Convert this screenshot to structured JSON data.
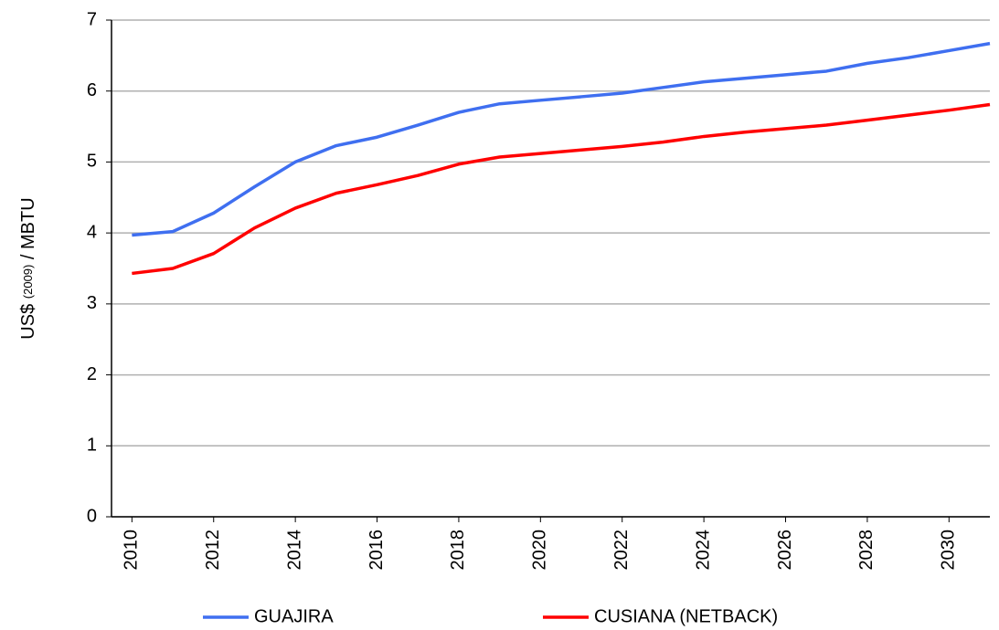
{
  "chart_data": {
    "type": "line",
    "y_label": [
      "US$",
      "(2009)",
      "/ MBTU"
    ],
    "x": [
      2010,
      2011,
      2012,
      2013,
      2014,
      2015,
      2016,
      2017,
      2018,
      2019,
      2020,
      2021,
      2022,
      2023,
      2024,
      2025,
      2026,
      2027,
      2028,
      2029,
      2030,
      2031
    ],
    "series": [
      {
        "name": "GUAJIRA",
        "color": "#3f6ff0",
        "values": [
          3.97,
          4.02,
          4.28,
          4.65,
          5.0,
          5.23,
          5.35,
          5.52,
          5.7,
          5.82,
          5.87,
          5.92,
          5.97,
          6.05,
          6.13,
          6.18,
          6.23,
          6.28,
          6.39,
          6.47,
          6.57,
          6.67
        ]
      },
      {
        "name": "CUSIANA (NETBACK)",
        "color": "#ff0000",
        "values": [
          3.43,
          3.5,
          3.71,
          4.07,
          4.35,
          4.56,
          4.68,
          4.81,
          4.97,
          5.07,
          5.12,
          5.17,
          5.22,
          5.28,
          5.36,
          5.42,
          5.47,
          5.52,
          5.59,
          5.66,
          5.73,
          5.81
        ]
      }
    ],
    "xlim": [
      2009.5,
      2031
    ],
    "xticks": [
      2010,
      2012,
      2014,
      2016,
      2018,
      2020,
      2022,
      2024,
      2026,
      2028,
      2030
    ],
    "ylim": [
      0,
      7
    ],
    "yticks": [
      0,
      1,
      2,
      3,
      4,
      5,
      6,
      7
    ],
    "grid": true,
    "legend": "bottom"
  }
}
